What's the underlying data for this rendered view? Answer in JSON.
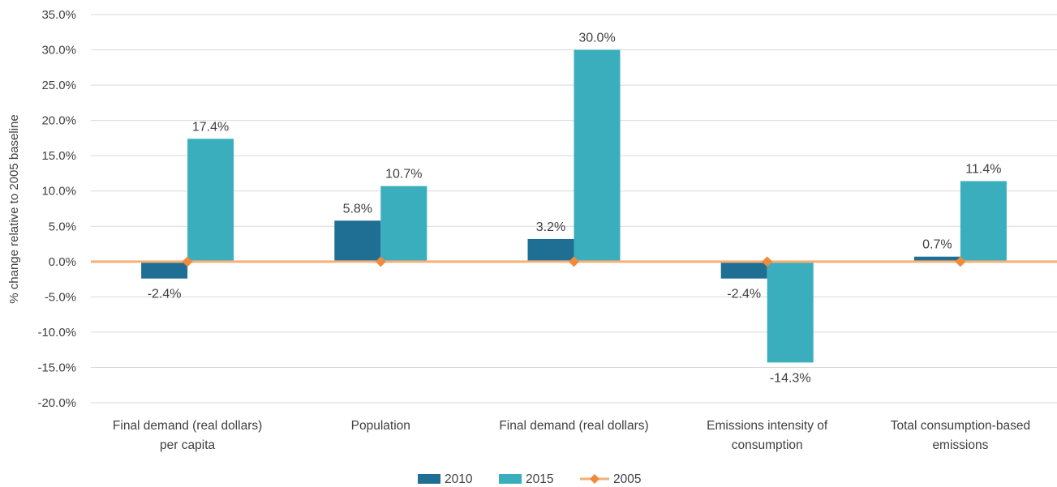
{
  "chart_data": {
    "type": "bar",
    "ylabel": "% change relative to 2005 baseline",
    "ylim": [
      -20,
      35
    ],
    "ytick_step": 5,
    "ytick_labels": [
      "-20.0%",
      "-15.0%",
      "-10.0%",
      "-5.0%",
      "0.0%",
      "5.0%",
      "10.0%",
      "15.0%",
      "20.0%",
      "25.0%",
      "30.0%",
      "35.0%"
    ],
    "grid": true,
    "legend_position": "bottom",
    "categories": [
      [
        "Final demand (real dollars)",
        "per capita"
      ],
      [
        "Population"
      ],
      [
        "Final demand (real dollars)"
      ],
      [
        "Emissions intensity of",
        "consumption"
      ],
      [
        "Total consumption-based",
        "emissions"
      ]
    ],
    "series": [
      {
        "name": "2010",
        "type": "bar",
        "color": "#1f6f94",
        "values": [
          -2.4,
          5.8,
          3.2,
          -2.4,
          0.7
        ],
        "labels": [
          "-2.4%",
          "5.8%",
          "3.2%",
          "-2.4%",
          "0.7%"
        ]
      },
      {
        "name": "2015",
        "type": "bar",
        "color": "#3aaebd",
        "values": [
          17.4,
          10.7,
          30.0,
          -14.3,
          11.4
        ],
        "labels": [
          "17.4%",
          "10.7%",
          "30.0%",
          "-14.3%",
          "11.4%"
        ]
      },
      {
        "name": "2005",
        "type": "line",
        "color": "#f08a3c",
        "line_color": "#f5b07a",
        "values": [
          0,
          0,
          0,
          0,
          0
        ]
      }
    ]
  }
}
